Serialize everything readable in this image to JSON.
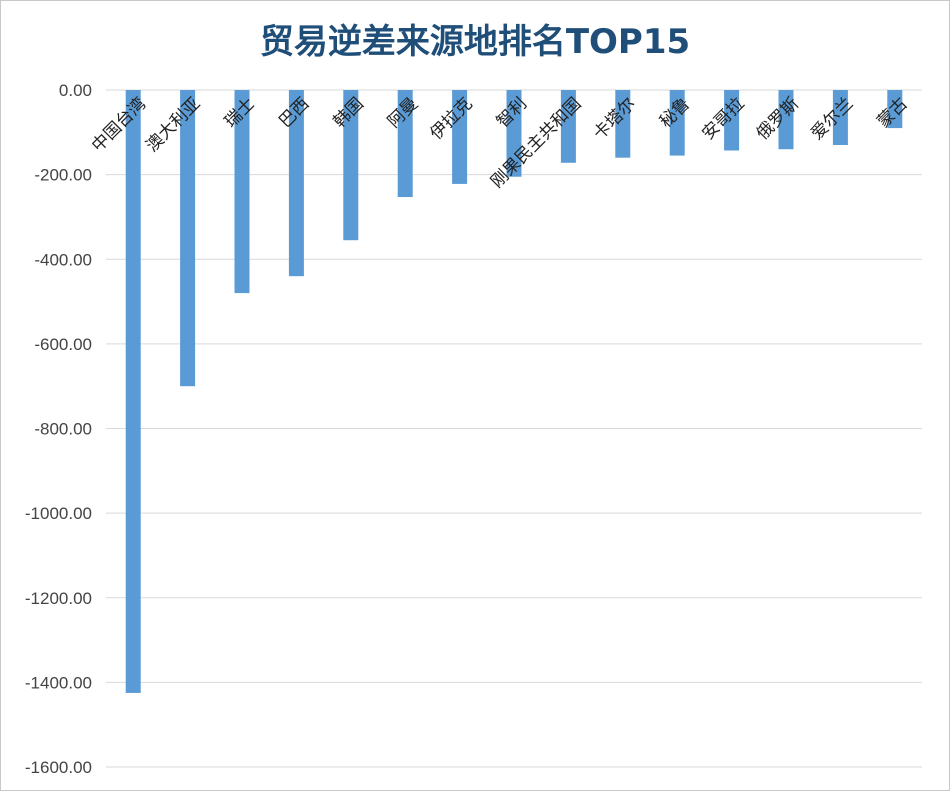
{
  "chart_data": {
    "type": "bar",
    "title": "贸易逆差来源地排名TOP15",
    "categories": [
      "中国台湾",
      "澳大利亚",
      "瑞士",
      "巴西",
      "韩国",
      "阿曼",
      "伊拉克",
      "智利",
      "刚果民主共和国",
      "卡塔尔",
      "秘鲁",
      "安哥拉",
      "俄罗斯",
      "爱尔兰",
      "蒙古"
    ],
    "values": [
      -1425,
      -700,
      -480,
      -440,
      -355,
      -253,
      -222,
      -205,
      -172,
      -160,
      -155,
      -143,
      -140,
      -130,
      -90
    ],
    "ylim": [
      -1600,
      0
    ],
    "yticks": [
      0,
      -200,
      -400,
      -600,
      -800,
      -1000,
      -1200,
      -1400,
      -1600
    ],
    "ytick_labels": [
      "0.00",
      "-200.00",
      "-400.00",
      "-600.00",
      "-800.00",
      "-1000.00",
      "-1200.00",
      "-1400.00",
      "-1600.00"
    ],
    "xlabel": "",
    "ylabel": "",
    "grid": true,
    "bar_color": "#5b9bd5",
    "grid_color": "#d9d9d9"
  }
}
